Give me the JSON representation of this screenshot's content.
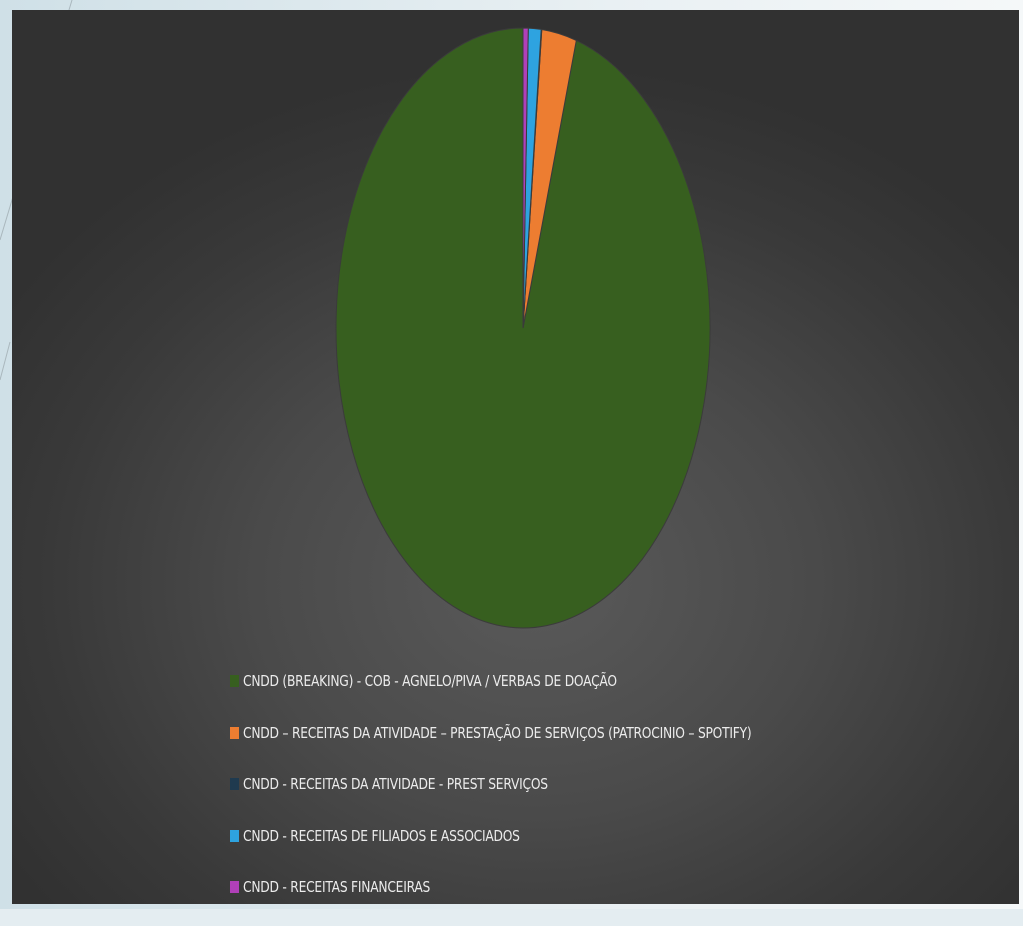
{
  "chart_data": {
    "type": "pie",
    "title": "",
    "start_angle_deg": 0,
    "direction": "counterclockwise",
    "legend_position": "bottom-left",
    "series": [
      {
        "name": "CNDD (BREAKING) - COB - AGNELO/PIVA / VERBAS DE DOAÇÃO",
        "value": 95.4,
        "color": "#375f1f"
      },
      {
        "name": "CNDD – RECEITAS DA ATIVIDADE – PRESTAÇÃO DE SERVIÇOS (PATROCINIO – SPOTIFY)",
        "value": 3.0,
        "color": "#ed7d31"
      },
      {
        "name": "CNDD - RECEITAS DA ATIVIDADE - PREST SERVIÇOS",
        "value": 0.05,
        "color": "#1f3a4f"
      },
      {
        "name": "CNDD - RECEITAS DE FILIADOS E ASSOCIADOS",
        "value": 1.1,
        "color": "#2ea3e0"
      },
      {
        "name": "CNDD - RECEITAS FINANCEIRAS",
        "value": 0.45,
        "color": "#b040b8"
      }
    ]
  }
}
